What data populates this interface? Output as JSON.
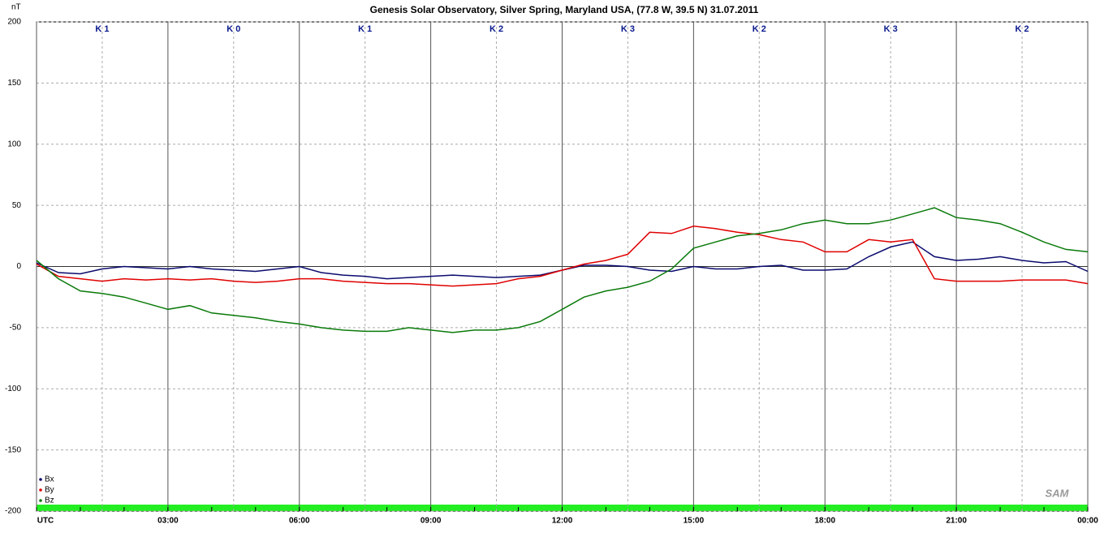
{
  "chart_data": {
    "type": "line",
    "title": "Genesis Solar Observatory, Silver Spring, Maryland USA, (77.8 W, 39.5 N)  31.07.2011",
    "y_label": "nT",
    "logo": "SAM",
    "x": [
      0,
      0.5,
      1,
      1.5,
      2,
      2.5,
      3,
      3.5,
      4,
      4.5,
      5,
      5.5,
      6,
      6.5,
      7,
      7.5,
      8,
      8.5,
      9,
      9.5,
      10,
      10.5,
      11,
      11.5,
      12,
      12.5,
      13,
      13.5,
      14,
      14.5,
      15,
      15.5,
      16,
      16.5,
      17,
      17.5,
      18,
      18.5,
      19,
      19.5,
      20,
      20.5,
      21,
      21.5,
      22,
      22.5,
      23,
      23.5,
      24
    ],
    "series": [
      {
        "name": "Bx",
        "color": "#0a0a6e",
        "values": [
          3,
          -5,
          -6,
          -2,
          0,
          -1,
          -2,
          0,
          -2,
          -3,
          -4,
          -2,
          0,
          -5,
          -7,
          -8,
          -10,
          -9,
          -8,
          -7,
          -8,
          -9,
          -8,
          -7,
          -3,
          1,
          1,
          0,
          -3,
          -4,
          0,
          -2,
          -2,
          0,
          1,
          -3,
          -3,
          -2,
          8,
          16,
          20,
          8,
          5,
          6,
          8,
          5,
          3,
          4,
          -4
        ]
      },
      {
        "name": "By",
        "color": "#e00000",
        "values": [
          2,
          -8,
          -10,
          -12,
          -10,
          -11,
          -10,
          -11,
          -10,
          -12,
          -13,
          -12,
          -10,
          -10,
          -12,
          -13,
          -14,
          -14,
          -15,
          -16,
          -15,
          -14,
          -10,
          -8,
          -3,
          2,
          5,
          10,
          28,
          27,
          33,
          31,
          28,
          26,
          22,
          20,
          12,
          12,
          22,
          20,
          22,
          -10,
          -12,
          -12,
          -12,
          -11,
          -11,
          -11,
          -14
        ]
      },
      {
        "name": "Bz",
        "color": "#0a7a0a",
        "values": [
          5,
          -10,
          -20,
          -22,
          -25,
          -30,
          -35,
          -32,
          -38,
          -40,
          -42,
          -45,
          -47,
          -50,
          -52,
          -53,
          -53,
          -50,
          -52,
          -54,
          -52,
          -52,
          -50,
          -45,
          -35,
          -25,
          -20,
          -17,
          -12,
          -2,
          15,
          20,
          25,
          27,
          30,
          35,
          38,
          35,
          35,
          38,
          43,
          48,
          40,
          38,
          35,
          28,
          20,
          14,
          12
        ]
      }
    ],
    "xlim": [
      0,
      24
    ],
    "ylim": [
      -200,
      200
    ],
    "yticks": [
      200,
      150,
      100,
      50,
      0,
      -50,
      -100,
      -150,
      -200
    ],
    "xticks": [
      {
        "value": 0,
        "label": "UTC"
      },
      {
        "value": 3,
        "label": "03:00"
      },
      {
        "value": 6,
        "label": "06:00"
      },
      {
        "value": 9,
        "label": "09:00"
      },
      {
        "value": 12,
        "label": "12:00"
      },
      {
        "value": 15,
        "label": "15:00"
      },
      {
        "value": 18,
        "label": "18:00"
      },
      {
        "value": 21,
        "label": "21:00"
      },
      {
        "value": 24,
        "label": "00:00"
      }
    ],
    "annotations": [
      {
        "x": 1.5,
        "text": "K 1"
      },
      {
        "x": 4.5,
        "text": "K 0"
      },
      {
        "x": 7.5,
        "text": "K 1"
      },
      {
        "x": 10.5,
        "text": "K 2"
      },
      {
        "x": 13.5,
        "text": "K 3"
      },
      {
        "x": 16.5,
        "text": "K 2"
      },
      {
        "x": 19.5,
        "text": "K 3"
      },
      {
        "x": 22.5,
        "text": "K 2"
      }
    ],
    "grid": true,
    "legend": "lower left"
  }
}
